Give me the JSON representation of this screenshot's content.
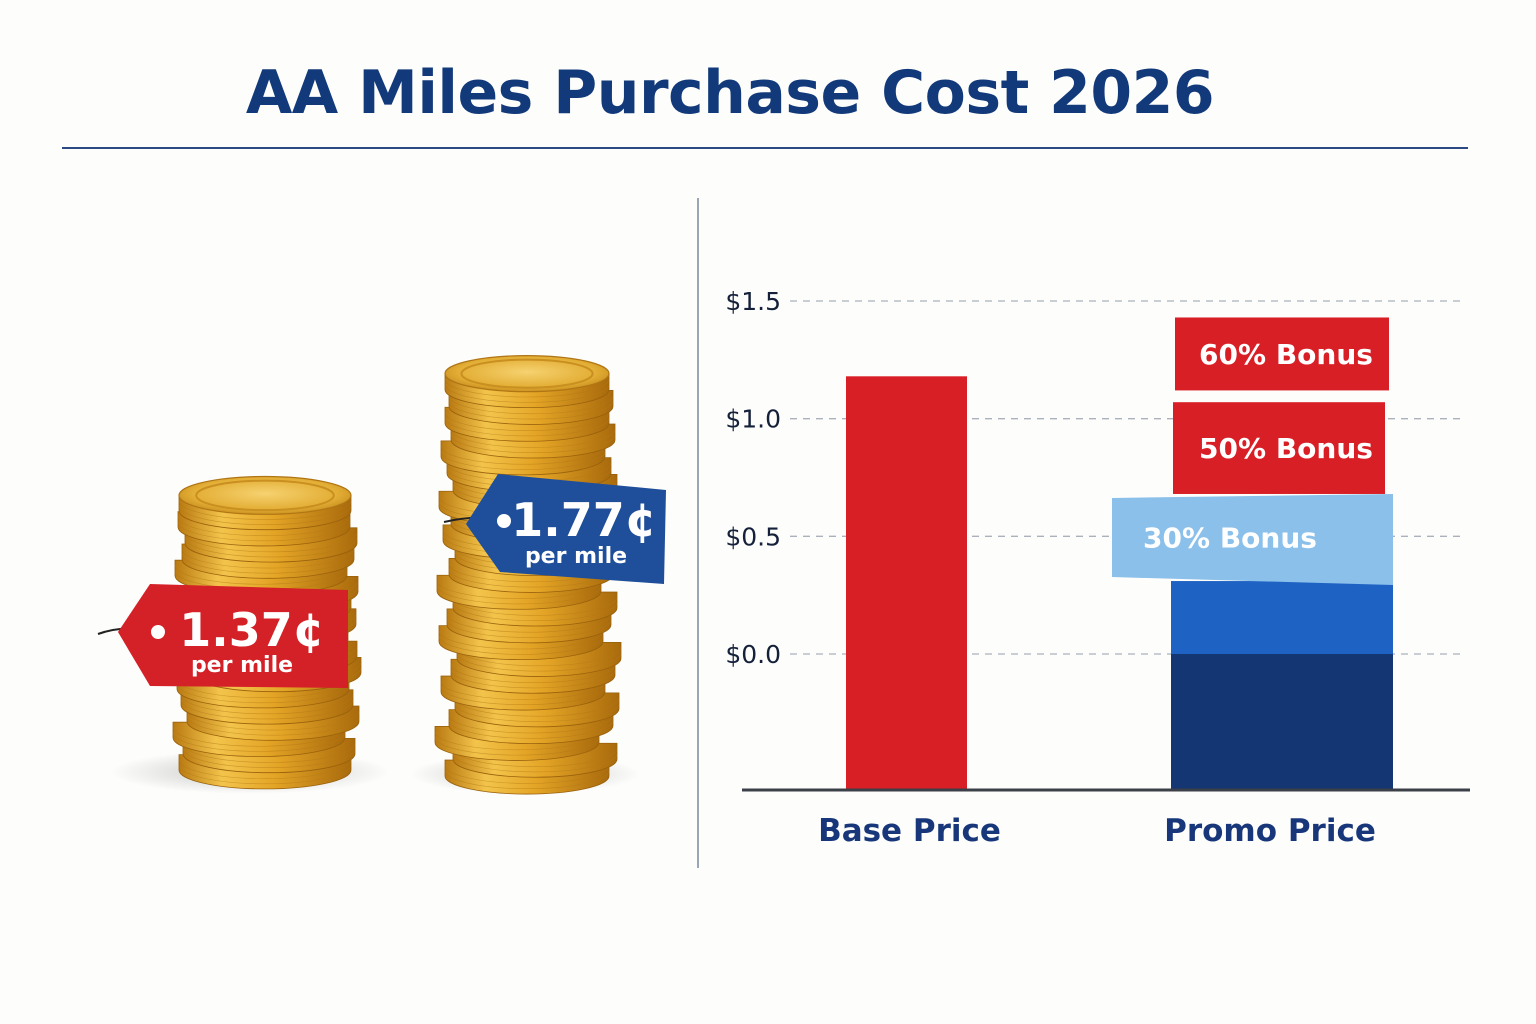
{
  "title": "AA Miles Purchase Cost 2026",
  "price_tags": [
    {
      "value": "1.37¢",
      "unit": "per mile",
      "color": "#d42027"
    },
    {
      "value": "1.77¢",
      "unit": "per mile",
      "color": "#1f4f9a"
    }
  ],
  "colors": {
    "title": "#123a7a",
    "coin_gold": "#e2a928",
    "base_bar": "#d91f26",
    "promo_dark": "#143673",
    "promo_mid": "#1e62c4",
    "promo_light": "#8bc0ea",
    "bonus_red": "#d91f26"
  },
  "chart_data": {
    "type": "bar",
    "categories": [
      "Base Price",
      "Promo Price"
    ],
    "yticks": [
      "$1.5",
      "$1.0",
      "$0.5",
      "$0.0"
    ],
    "ytick_values": [
      1.5,
      1.0,
      0.5,
      0.0
    ],
    "ylim": [
      -0.58,
      1.55
    ],
    "grid": true,
    "base": {
      "bottom": -0.58,
      "top": 1.18
    },
    "promo_segments": [
      {
        "bottom": -0.58,
        "top": 0.0,
        "label": "",
        "color": "#143673"
      },
      {
        "bottom": 0.0,
        "top": 0.31,
        "label": "",
        "color": "#1e62c4"
      },
      {
        "bottom": 0.31,
        "top": 0.68,
        "label": "30% Bonus",
        "color": "#8bc0ea"
      },
      {
        "bottom": 0.68,
        "top": 1.07,
        "label": "50% Bonus",
        "color": "#d91f26"
      },
      {
        "bottom": 1.12,
        "top": 1.43,
        "label": "60% Bonus",
        "color": "#d91f26"
      }
    ]
  }
}
